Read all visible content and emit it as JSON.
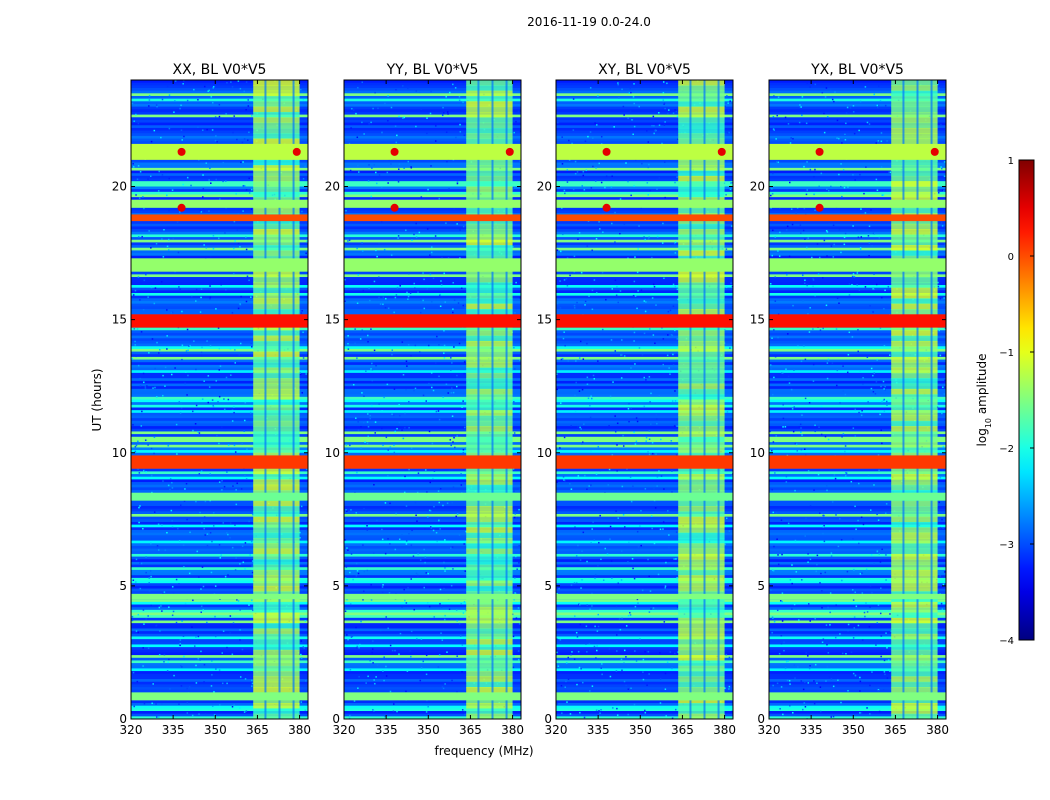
{
  "figure": {
    "suptitle": "2016-11-19 0.0-24.0"
  },
  "chart_data": {
    "type": "heatmap",
    "title": "2016-11-19 0.0-24.0",
    "xlabel": "frequency (MHz)",
    "ylabel": "UT (hours)",
    "xlim": [
      320,
      383
    ],
    "ylim": [
      0,
      24
    ],
    "xticks": [
      320,
      335,
      350,
      365,
      380
    ],
    "yticks": [
      0,
      5,
      10,
      15,
      20
    ],
    "panels": [
      {
        "title": "XX, BL V0*V5",
        "polarization": "XX"
      },
      {
        "title": "YY, BL V0*V5",
        "polarization": "YY"
      },
      {
        "title": "XY, BL V0*V5",
        "polarization": "XY"
      },
      {
        "title": "YX, BL V0*V5",
        "polarization": "YX"
      }
    ],
    "colorbar": {
      "label": "log10 amplitude",
      "label_main": "log",
      "label_sub": "10",
      "label_rest": " amplitude",
      "range": [
        -4,
        1
      ],
      "ticks": [
        "1",
        "0",
        "−1",
        "−2",
        "−3",
        "−4"
      ],
      "tick_values": [
        1,
        0,
        -1,
        -2,
        -3,
        -4
      ],
      "colormap": "jet"
    },
    "features": {
      "background_log_amplitude": -3.0,
      "rfi_band_mhz": [
        363.5,
        380
      ],
      "rfi_band_log_amplitude": -1.5,
      "bright_horizontal_bands": [
        {
          "ut_start": 14.7,
          "ut_end": 15.2,
          "log_amplitude": 0.3
        },
        {
          "ut_start": 9.4,
          "ut_end": 9.9,
          "log_amplitude": 0.1
        },
        {
          "ut_start": 18.7,
          "ut_end": 18.95,
          "log_amplitude": 0.0
        },
        {
          "ut_start": 21.0,
          "ut_end": 21.6,
          "log_amplitude": -1.2
        },
        {
          "ut_start": 16.8,
          "ut_end": 17.3,
          "log_amplitude": -1.4
        },
        {
          "ut_start": 19.2,
          "ut_end": 19.5,
          "log_amplitude": -1.4
        },
        {
          "ut_start": 4.5,
          "ut_end": 4.7,
          "log_amplitude": -1.5
        },
        {
          "ut_start": 0.7,
          "ut_end": 1.0,
          "log_amplitude": -1.5
        },
        {
          "ut_start": 8.2,
          "ut_end": 8.5,
          "log_amplitude": -1.6
        }
      ]
    }
  }
}
